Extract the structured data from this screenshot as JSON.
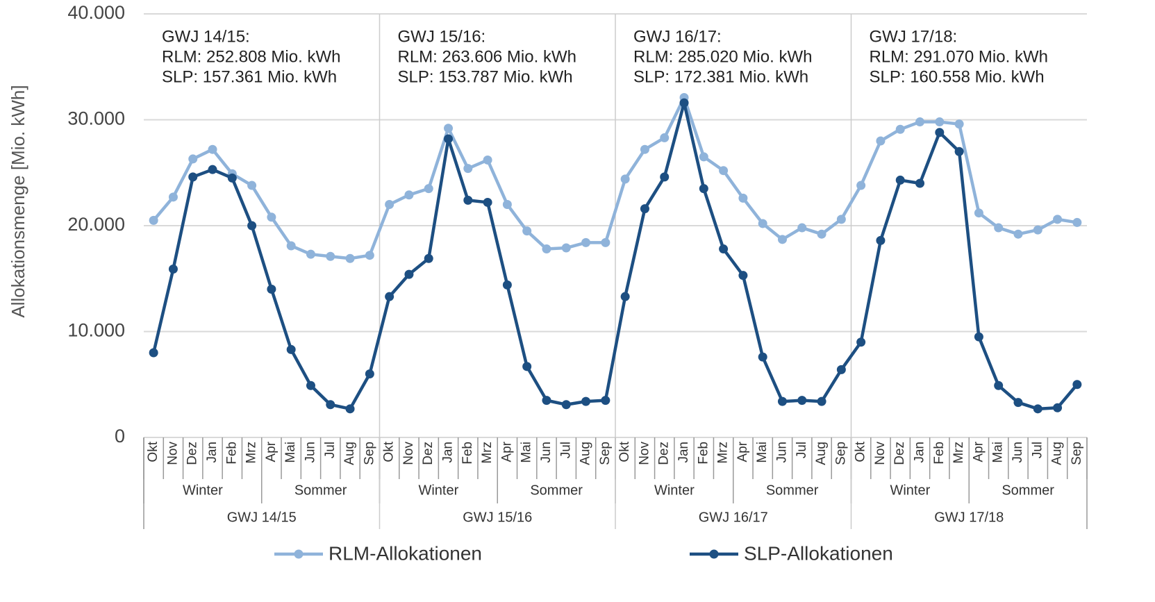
{
  "chart_data": {
    "type": "line",
    "y_label": "Allokationsmenge [Mio. kWh]",
    "categories": [
      "Okt",
      "Nov",
      "Dez",
      "Jan",
      "Feb",
      "Mrz",
      "Apr",
      "Mai",
      "Jun",
      "Jul",
      "Aug",
      "Sep",
      "Okt",
      "Nov",
      "Dez",
      "Jan",
      "Feb",
      "Mrz",
      "Apr",
      "Mai",
      "Jun",
      "Jul",
      "Aug",
      "Sep",
      "Okt",
      "Nov",
      "Dez",
      "Jan",
      "Feb",
      "Mrz",
      "Apr",
      "Mai",
      "Jun",
      "Jul",
      "Aug",
      "Sep",
      "Okt",
      "Nov",
      "Dez",
      "Jan",
      "Feb",
      "Mrz",
      "Apr",
      "Mai",
      "Jun",
      "Jul",
      "Aug",
      "Sep"
    ],
    "groups": [
      {
        "label": "GWJ 14/15",
        "seasons": [
          "Winter",
          "Sommer"
        ],
        "annotation": [
          "GWJ 14/15:",
          "RLM: 252.808 Mio. kWh",
          "SLP: 157.361 Mio. kWh"
        ]
      },
      {
        "label": "GWJ 15/16",
        "seasons": [
          "Winter",
          "Sommer"
        ],
        "annotation": [
          "GWJ 15/16:",
          "RLM: 263.606 Mio. kWh",
          "SLP: 153.787 Mio. kWh"
        ]
      },
      {
        "label": "GWJ 16/17",
        "seasons": [
          "Winter",
          "Sommer"
        ],
        "annotation": [
          "GWJ 16/17:",
          "RLM: 285.020 Mio. kWh",
          "SLP: 172.381 Mio. kWh"
        ]
      },
      {
        "label": "GWJ 17/18",
        "seasons": [
          "Winter",
          "Sommer"
        ],
        "annotation": [
          "GWJ 17/18:",
          "RLM: 291.070 Mio. kWh",
          "SLP: 160.558 Mio. kWh"
        ]
      }
    ],
    "series": [
      {
        "name": "RLM-Allokationen",
        "color": "#8fb3da",
        "values": [
          20500,
          22700,
          26300,
          27200,
          24900,
          23800,
          20800,
          18100,
          17300,
          17100,
          16900,
          17200,
          22000,
          22900,
          23500,
          29200,
          25400,
          26200,
          22000,
          19500,
          17800,
          17900,
          18400,
          18400,
          24400,
          27200,
          28300,
          32100,
          26500,
          25200,
          22600,
          20200,
          18700,
          19800,
          19200,
          20600,
          23800,
          28000,
          29100,
          29800,
          29800,
          29600,
          21200,
          19800,
          19200,
          19600,
          20600,
          20300
        ]
      },
      {
        "name": "SLP-Allokationen",
        "color": "#1d4f82",
        "values": [
          8000,
          15900,
          24600,
          25300,
          24500,
          20000,
          14000,
          8300,
          4900,
          3100,
          2700,
          6000,
          13300,
          15400,
          16900,
          28200,
          22400,
          22200,
          14400,
          6700,
          3500,
          3100,
          3400,
          3500,
          13300,
          21600,
          24600,
          31600,
          23500,
          17800,
          15300,
          7600,
          3400,
          3500,
          3400,
          6400,
          9000,
          18600,
          24300,
          24000,
          28800,
          27000,
          9500,
          4900,
          3300,
          2700,
          2800,
          5000
        ]
      }
    ],
    "ylim": [
      0,
      40000
    ],
    "yticks": [
      0,
      {
        "value": 10000,
        "label": "10.000"
      },
      {
        "value": 20000,
        "label": "20.000"
      },
      {
        "value": 30000,
        "label": "30.000"
      },
      {
        "value": 40000,
        "label": "40.000"
      }
    ],
    "grid": true
  }
}
